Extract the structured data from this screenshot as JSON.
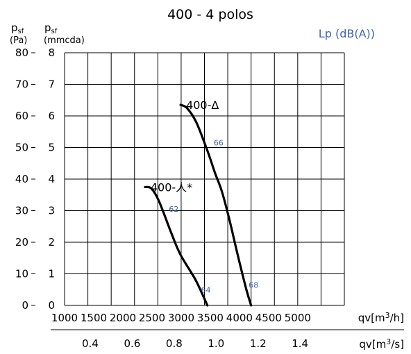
{
  "chart_data": {
    "type": "line",
    "title": "400 - 4 polos",
    "sound_label": "Lp (dB(A))",
    "y_left": {
      "symbol": "p",
      "subscript": "sf",
      "unit": "(Pa)",
      "range": [
        0,
        80
      ],
      "ticks": [
        "0",
        "10",
        "20",
        "30",
        "40",
        "50",
        "60",
        "70",
        "80"
      ]
    },
    "y_right": {
      "symbol": "p",
      "subscript": "sf",
      "unit": "(mmcda)",
      "range": [
        0,
        8
      ],
      "ticks": [
        "0",
        "1",
        "2",
        "3",
        "4",
        "5",
        "6",
        "7",
        "8"
      ]
    },
    "x_top": {
      "label": "qv[m3/h]",
      "range": [
        1000,
        5800
      ],
      "ticks": [
        1000,
        1500,
        2000,
        2500,
        3000,
        3500,
        4000,
        4500,
        5000
      ],
      "tick_labels": [
        "1000",
        "1500",
        "2000",
        "2500",
        "3000",
        "3500",
        "4000",
        "4500",
        "5000"
      ]
    },
    "x_bottom": {
      "label": "qv[m3/s]",
      "ticks": [
        0.4,
        0.6,
        0.8,
        1.0,
        1.2,
        1.4
      ],
      "tick_labels": [
        "0.4",
        "0.6",
        "0.8",
        "1.0",
        "1.2",
        "1.4"
      ]
    },
    "grid": true,
    "series": [
      {
        "name": "400-Δ",
        "points": [
          [
            2990,
            63.5
          ],
          [
            3100,
            62.5
          ],
          [
            3260,
            58
          ],
          [
            3450,
            49
          ],
          [
            3580,
            42
          ],
          [
            3700,
            36
          ],
          [
            3830,
            27
          ],
          [
            3970,
            16
          ],
          [
            4120,
            5
          ],
          [
            4200,
            0
          ]
        ],
        "sound_levels": [
          {
            "text": "66",
            "x": 3560,
            "y": 51.5
          },
          {
            "text": "68",
            "x": 4160,
            "y": 6.5
          }
        ]
      },
      {
        "name": "400-人*",
        "points": [
          [
            2380,
            37.5
          ],
          [
            2490,
            37
          ],
          [
            2620,
            33
          ],
          [
            2830,
            23
          ],
          [
            2990,
            16
          ],
          [
            3250,
            8
          ],
          [
            3450,
            0
          ]
        ],
        "sound_levels": [
          {
            "text": "62",
            "x": 2790,
            "y": 30.5
          },
          {
            "text": "64",
            "x": 3340,
            "y": 5
          }
        ]
      }
    ]
  }
}
